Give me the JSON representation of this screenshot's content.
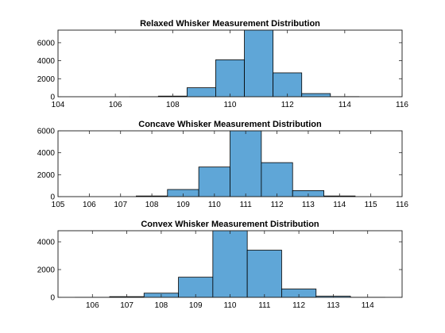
{
  "chart_data": [
    {
      "type": "bar",
      "title": "Relaxed Whisker Measurement Distribution",
      "xlabel": "",
      "ylabel": "",
      "xlim": [
        104,
        116
      ],
      "ylim": [
        0,
        7400
      ],
      "xticks": [
        104,
        106,
        108,
        110,
        112,
        114,
        116
      ],
      "yticks": [
        0,
        2000,
        4000,
        6000
      ],
      "bin_edges": [
        106.5,
        107.5,
        108.5,
        109.5,
        110.5,
        111.5,
        112.5,
        113.5,
        114.5
      ],
      "values": [
        5,
        70,
        1000,
        4100,
        7400,
        2650,
        350,
        15
      ],
      "bar_color": "#5fa6d7"
    },
    {
      "type": "bar",
      "title": "Concave Whisker Measurement Distribution",
      "xlabel": "",
      "ylabel": "",
      "xlim": [
        105,
        116
      ],
      "ylim": [
        0,
        6000
      ],
      "xticks": [
        105,
        106,
        107,
        108,
        109,
        110,
        111,
        112,
        113,
        114,
        115,
        116
      ],
      "yticks": [
        0,
        2000,
        4000,
        6000
      ],
      "bin_edges": [
        107.5,
        108.5,
        109.5,
        110.5,
        111.5,
        112.5,
        113.5,
        114.5
      ],
      "values": [
        60,
        650,
        2700,
        6000,
        3100,
        550,
        60
      ],
      "bar_color": "#5fa6d7"
    },
    {
      "type": "bar",
      "title": "Convex Whisker Measurement Distribution",
      "xlabel": "",
      "ylabel": "",
      "xlim": [
        105,
        115
      ],
      "ylim": [
        0,
        4800
      ],
      "xticks": [
        106,
        107,
        108,
        109,
        110,
        111,
        112,
        113,
        114
      ],
      "yticks": [
        0,
        2000,
        4000
      ],
      "bin_edges": [
        105.5,
        106.5,
        107.5,
        108.5,
        109.5,
        110.5,
        111.5,
        112.5,
        113.5,
        114.5
      ],
      "values": [
        5,
        50,
        300,
        1450,
        4800,
        3400,
        600,
        80,
        5
      ],
      "bar_color": "#5fa6d7"
    }
  ]
}
